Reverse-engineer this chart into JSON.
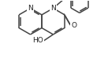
{
  "background_color": "#ffffff",
  "line_color": "#444444",
  "line_width": 1.1,
  "figsize": [
    1.37,
    0.79
  ],
  "dpi": 100,
  "xlim": [
    0,
    137
  ],
  "ylim": [
    0,
    79
  ]
}
